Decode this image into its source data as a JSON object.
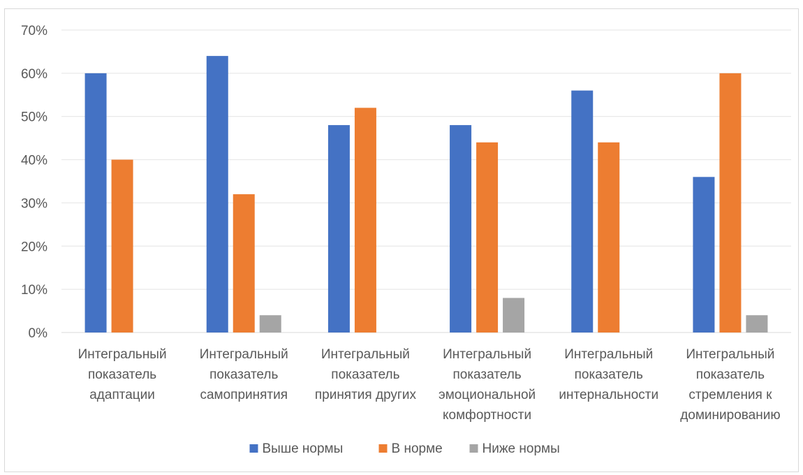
{
  "chart_data": {
    "type": "bar",
    "categories": [
      [
        "Интегральный",
        "показатель",
        "адаптации"
      ],
      [
        "Интегральный",
        "показатель",
        "самопринятия"
      ],
      [
        "Интегральный",
        "показатель",
        "принятия других"
      ],
      [
        "Интегральный",
        "показатель",
        "эмоциональной",
        "комфортности"
      ],
      [
        "Интегральный",
        "показатель",
        "интернальности"
      ],
      [
        "Интегральный",
        "показатель",
        "стремления к",
        "доминированию"
      ]
    ],
    "series": [
      {
        "name": "Выше нормы",
        "color": "#4472c4",
        "values": [
          60,
          64,
          48,
          48,
          56,
          36
        ]
      },
      {
        "name": "В норме",
        "color": "#ed7d31",
        "values": [
          40,
          32,
          52,
          44,
          44,
          60
        ]
      },
      {
        "name": "Ниже нормы",
        "color": "#a5a5a5",
        "values": [
          0,
          4,
          0,
          8,
          0,
          4
        ]
      }
    ],
    "ylim": [
      0,
      70
    ],
    "yticks": [
      "0%",
      "10%",
      "20%",
      "30%",
      "40%",
      "50%",
      "60%",
      "70%"
    ],
    "grid": true,
    "legend_position": "bottom",
    "title": "",
    "xlabel": "",
    "ylabel": ""
  }
}
